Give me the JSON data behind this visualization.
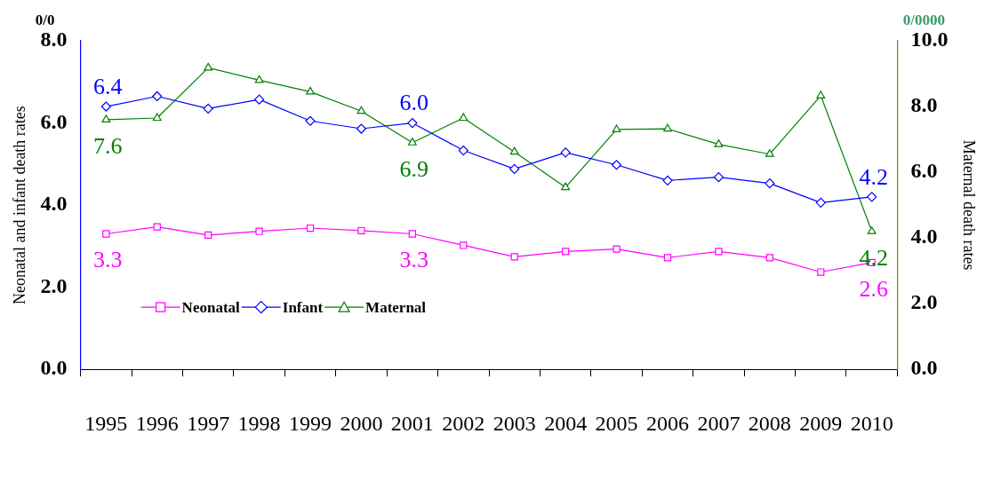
{
  "chart_data": {
    "type": "line",
    "categories": [
      "1995",
      "1996",
      "1997",
      "1998",
      "1999",
      "2000",
      "2001",
      "2002",
      "2003",
      "2004",
      "2005",
      "2006",
      "2007",
      "2008",
      "2009",
      "2010"
    ],
    "ylabel": "Neonatal and infant death rates",
    "y2label": "Maternal death rates",
    "annotations": [
      "0/0",
      "0/0000"
    ],
    "ylim": [
      0,
      8
    ],
    "yticks": [
      {
        "value": 0,
        "label": "0.0"
      },
      {
        "value": 2,
        "label": "2.0"
      },
      {
        "value": 4,
        "label": "4.0"
      },
      {
        "value": 6,
        "label": "6.0"
      },
      {
        "value": 8,
        "label": "8.0"
      }
    ],
    "y2lim": [
      0,
      10
    ],
    "y2ticks": [
      {
        "value": 0,
        "label": "0.0"
      },
      {
        "value": 2,
        "label": "2.0"
      },
      {
        "value": 4,
        "label": "4.0"
      },
      {
        "value": 6,
        "label": "6.0"
      },
      {
        "value": 8,
        "label": "8.0"
      },
      {
        "value": 10,
        "label": "10.0"
      }
    ],
    "grid": false,
    "legend": "bottom left",
    "series": [
      {
        "name": "Neonatal",
        "color": "#ff00ff",
        "marker": "square",
        "values": [
          3.3,
          3.47,
          3.27,
          3.36,
          3.44,
          3.38,
          3.3,
          3.02,
          2.74,
          2.87,
          2.93,
          2.72,
          2.87,
          2.72,
          2.37,
          2.6
        ],
        "value_labels": [
          "3.3",
          null,
          null,
          null,
          null,
          null,
          "3.3",
          null,
          null,
          null,
          null,
          null,
          null,
          null,
          null,
          "2.6"
        ]
      },
      {
        "name": "Infant",
        "color": "#0000ff",
        "marker": "diamond",
        "values": [
          6.4,
          6.65,
          6.35,
          6.57,
          6.05,
          5.86,
          6.0,
          5.33,
          4.88,
          5.28,
          4.98,
          4.6,
          4.68,
          4.53,
          4.06,
          4.2
        ],
        "value_labels": [
          "6.4",
          null,
          null,
          null,
          null,
          null,
          "6.0",
          null,
          null,
          null,
          null,
          null,
          null,
          null,
          null,
          "4.2"
        ]
      },
      {
        "name": "Maternal",
        "color": "#008000",
        "marker": "triangle",
        "axis": "y2",
        "values": [
          7.6,
          7.65,
          9.18,
          8.8,
          8.45,
          7.86,
          6.9,
          7.65,
          6.62,
          5.54,
          7.3,
          7.32,
          6.85,
          6.55,
          8.33,
          4.2
        ],
        "value_labels": [
          "7.6",
          null,
          null,
          null,
          null,
          null,
          "6.9",
          null,
          null,
          null,
          null,
          null,
          null,
          null,
          null,
          "4.2"
        ]
      }
    ]
  }
}
